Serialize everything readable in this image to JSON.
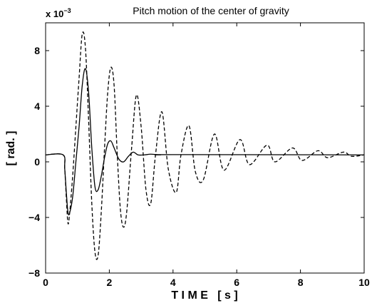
{
  "chart_data": {
    "type": "line",
    "title": "Pitch motion of the center of gravity",
    "xlabel": "T I M E   [ s ]",
    "ylabel": "[ rad. ]",
    "y_multiplier": {
      "base": "x 10",
      "exponent": "−3"
    },
    "xlim": [
      0,
      10
    ],
    "ylim": [
      -8,
      10
    ],
    "x_ticks": [
      0,
      2,
      4,
      6,
      8,
      10
    ],
    "x_tick_labels": [
      "0",
      "2",
      "4",
      "6",
      "8",
      "10"
    ],
    "y_ticks": [
      -8,
      -4,
      0,
      4,
      8
    ],
    "y_tick_labels": [
      "−8",
      "−4",
      "0",
      "4",
      "8"
    ],
    "grid": false,
    "series": [
      {
        "style": "dashed",
        "color": "#000000",
        "x": [
          0,
          0.55,
          0.6,
          0.65,
          0.7,
          0.75,
          0.85,
          0.95,
          1.05,
          1.15,
          1.25,
          1.35,
          1.45,
          1.55,
          1.65,
          1.75,
          1.85,
          1.95,
          2.05,
          2.15,
          2.25,
          2.35,
          2.45,
          2.55,
          2.7,
          2.85,
          3.0,
          3.15,
          3.3,
          3.45,
          3.65,
          3.85,
          4.1,
          4.25,
          4.5,
          4.7,
          4.95,
          5.3,
          5.6,
          6.1,
          6.4,
          6.95,
          7.2,
          7.75,
          8.05,
          8.55,
          8.85,
          9.35,
          9.6,
          10.0
        ],
        "y": [
          0.5,
          0.5,
          -0.5,
          -2.6,
          -4.4,
          -3.8,
          -1.0,
          2.5,
          6.0,
          9.2,
          8.2,
          3.0,
          -3.0,
          -6.5,
          -6.7,
          -3.5,
          1.0,
          5.0,
          6.8,
          5.5,
          0.5,
          -3.5,
          -4.7,
          -3.5,
          1.0,
          4.8,
          2.5,
          -2.0,
          -3.0,
          0.5,
          3.6,
          -0.5,
          -2.2,
          0.5,
          2.6,
          -0.7,
          -1.3,
          2.0,
          -0.6,
          1.6,
          -0.2,
          1.2,
          0.0,
          1.0,
          0.1,
          0.8,
          0.3,
          0.7,
          0.4,
          0.5
        ]
      },
      {
        "style": "solid",
        "color": "#000000",
        "x": [
          0,
          0.55,
          0.6,
          0.65,
          0.7,
          0.75,
          0.85,
          0.95,
          1.05,
          1.15,
          1.25,
          1.35,
          1.45,
          1.55,
          1.65,
          1.75,
          1.85,
          1.95,
          2.05,
          2.15,
          2.3,
          2.45,
          2.6,
          2.75,
          2.9,
          3.1,
          3.3,
          3.6,
          4.0,
          10.0
        ],
        "y": [
          0.5,
          0.5,
          -0.5,
          -2.2,
          -3.6,
          -3.7,
          -2.5,
          0.0,
          2.5,
          5.5,
          6.7,
          5.0,
          1.0,
          -1.8,
          -2.0,
          -1.0,
          0.3,
          1.3,
          1.5,
          1.0,
          0.2,
          0.0,
          0.4,
          0.7,
          0.5,
          0.5,
          0.55,
          0.5,
          0.52,
          0.5
        ]
      }
    ]
  }
}
